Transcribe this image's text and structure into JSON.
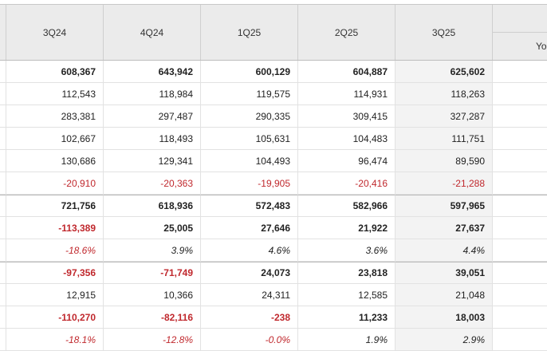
{
  "table": {
    "header": [
      "3Q24",
      "4Q24",
      "1Q25",
      "2Q25",
      "3Q25"
    ],
    "header_extra": "Yo",
    "rows": [
      [
        "608,367",
        "643,942",
        "600,129",
        "604,887",
        "625,602"
      ],
      [
        "112,543",
        "118,984",
        "119,575",
        "114,931",
        "118,263"
      ],
      [
        "283,381",
        "297,487",
        "290,335",
        "309,415",
        "327,287"
      ],
      [
        "102,667",
        "118,493",
        "105,631",
        "104,483",
        "111,751"
      ],
      [
        "130,686",
        "129,341",
        "104,493",
        "96,474",
        "89,590"
      ],
      [
        "-20,910",
        "-20,363",
        "-19,905",
        "-20,416",
        "-21,288"
      ],
      [
        "721,756",
        "618,936",
        "572,483",
        "582,966",
        "597,965"
      ],
      [
        "-113,389",
        "25,005",
        "27,646",
        "21,922",
        "27,637"
      ],
      [
        "-18.6%",
        "3.9%",
        "4.6%",
        "3.6%",
        "4.4%"
      ],
      [
        "-97,356",
        "-71,749",
        "24,073",
        "23,818",
        "39,051"
      ],
      [
        "12,915",
        "10,366",
        "24,311",
        "12,585",
        "21,048"
      ],
      [
        "-110,270",
        "-82,116",
        "-238",
        "11,233",
        "18,003"
      ],
      [
        "-18.1%",
        "-12.8%",
        "-0.0%",
        "1.9%",
        "2.9%"
      ]
    ]
  }
}
